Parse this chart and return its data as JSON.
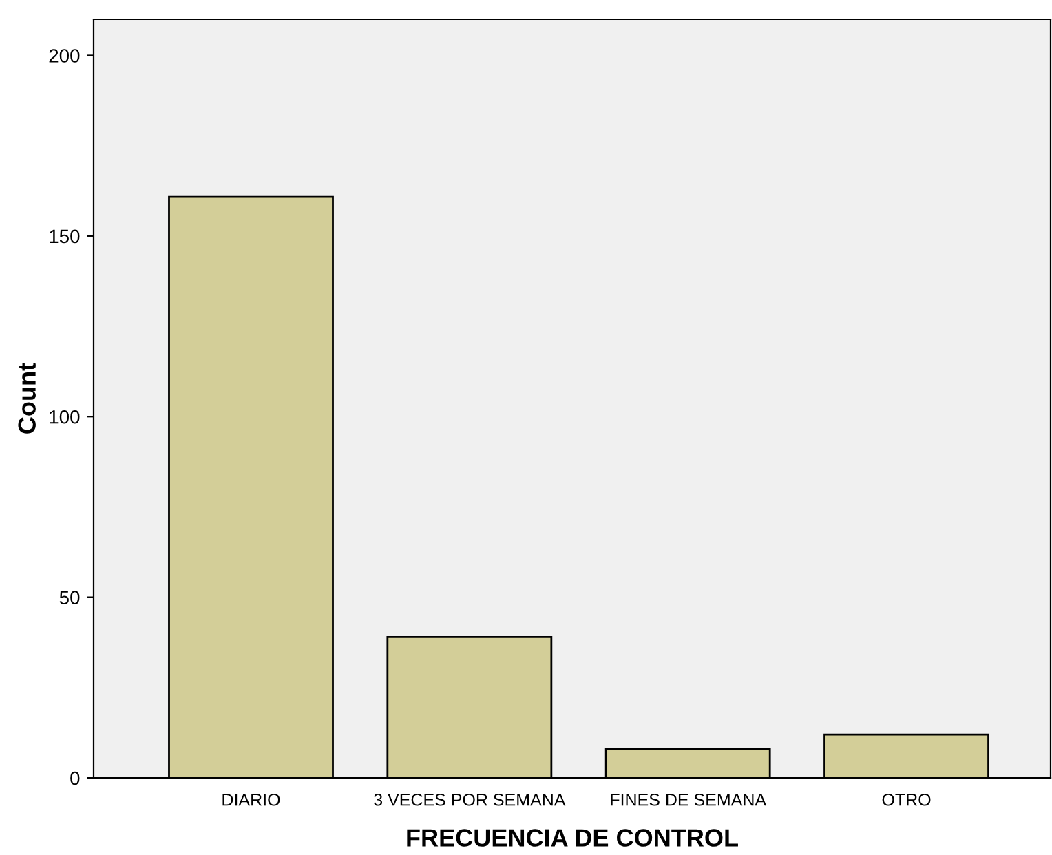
{
  "chart_data": {
    "type": "bar",
    "xlabel": "FRECUENCIA DE CONTROL",
    "ylabel": "Count",
    "categories": [
      "DIARIO",
      "3 VECES POR SEMANA",
      "FINES DE SEMANA",
      "OTRO"
    ],
    "values": [
      161,
      39,
      8,
      12
    ],
    "color": "#d3ce98",
    "ylim": [
      0,
      210
    ],
    "yticks": [
      0,
      50,
      100,
      150,
      200
    ],
    "grid": false,
    "legend": false
  }
}
